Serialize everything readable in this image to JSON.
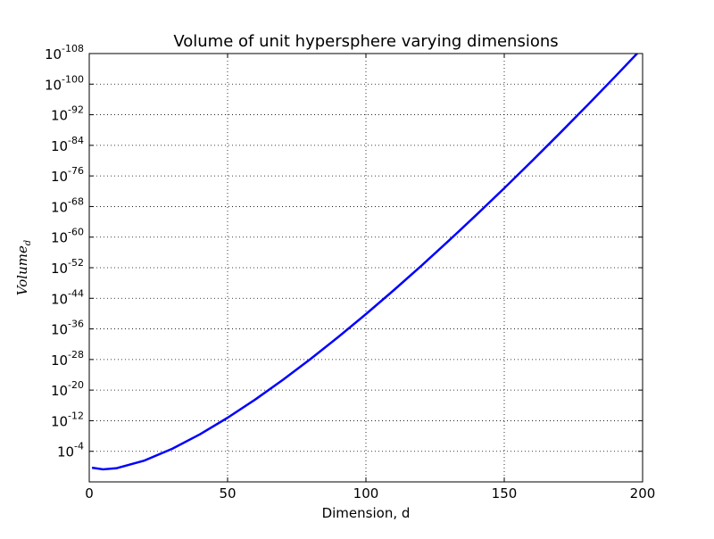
{
  "chart_data": {
    "type": "line",
    "title": "Volume of unit hypersphere varying dimensions",
    "xlabel": "Dimension, d",
    "ylabel": {
      "base": "Volume",
      "subscript": "d"
    },
    "xlim": [
      0,
      200
    ],
    "ylim_exponent": [
      -108,
      4
    ],
    "yscale": "log",
    "grid": true,
    "x_ticks": [
      0,
      50,
      100,
      150,
      200
    ],
    "x_tick_labels": [
      "0",
      "50",
      "100",
      "150",
      "200"
    ],
    "y_ticks_exponent": [
      -4,
      -12,
      -20,
      -28,
      -36,
      -44,
      -52,
      -60,
      -68,
      -76,
      -84,
      -92,
      -100,
      -108
    ],
    "y_tick_labels": [
      {
        "base": "10",
        "exp": "-4"
      },
      {
        "base": "10",
        "exp": "-12"
      },
      {
        "base": "10",
        "exp": "-20"
      },
      {
        "base": "10",
        "exp": "-28"
      },
      {
        "base": "10",
        "exp": "-36"
      },
      {
        "base": "10",
        "exp": "-44"
      },
      {
        "base": "10",
        "exp": "-52"
      },
      {
        "base": "10",
        "exp": "-60"
      },
      {
        "base": "10",
        "exp": "-68"
      },
      {
        "base": "10",
        "exp": "-76"
      },
      {
        "base": "10",
        "exp": "-84"
      },
      {
        "base": "10",
        "exp": "-92"
      },
      {
        "base": "10",
        "exp": "-100"
      },
      {
        "base": "10",
        "exp": "-108"
      }
    ],
    "series": [
      {
        "color": "#0000ff",
        "x": [
          1,
          5,
          10,
          20,
          30,
          40,
          50,
          60,
          70,
          80,
          90,
          100,
          110,
          120,
          130,
          140,
          150,
          160,
          170,
          180,
          190,
          200
        ],
        "log10_y": [
          0.301,
          0.719,
          0.406,
          -1.596,
          -4.67,
          -8.442,
          -12.77,
          -17.54,
          -22.681,
          -28.143,
          -33.881,
          -39.87,
          -46.081,
          -52.495,
          -59.096,
          -65.868,
          -72.8,
          -79.88,
          -87.1,
          -94.451,
          -101.92,
          -109.512
        ]
      }
    ]
  }
}
